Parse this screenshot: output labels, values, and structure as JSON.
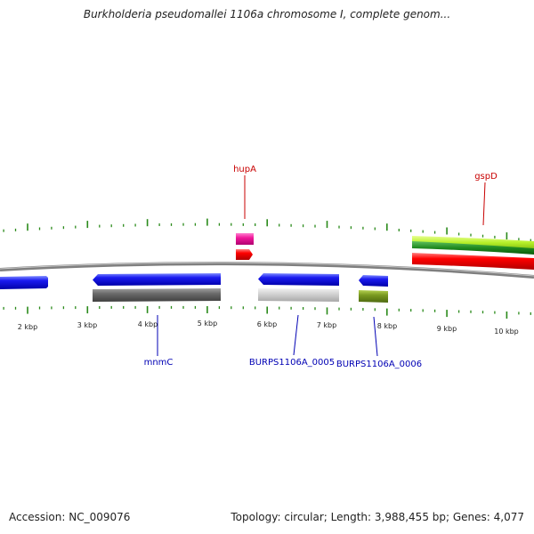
{
  "title": "Burkholderia pseudomallei 1106a chromosome I, complete genom...",
  "footer": {
    "accession": "Accession: NC_009076",
    "summary": "Topology: circular; Length: 3,988,455 bp; Genes: 4,077"
  },
  "scale_labels": [
    "2 kbp",
    "3 kbp",
    "4 kbp",
    "5 kbp",
    "6 kbp",
    "7 kbp",
    "8 kbp",
    "9 kbp",
    "10 kbp"
  ],
  "gene_labels": {
    "hupA": "hupA",
    "gspD": "gspD",
    "mnmC": "mnmC",
    "burps0005": "BURPS1106A_0005",
    "burps0006": "BURPS1106A_0006"
  },
  "colors": {
    "forward_strand": "#f00000",
    "reverse_strand": "#1515e6",
    "label_forward": "#c80000",
    "label_reverse": "#0000b4",
    "tick": "#2a8a1a",
    "backbone": "#808080"
  }
}
